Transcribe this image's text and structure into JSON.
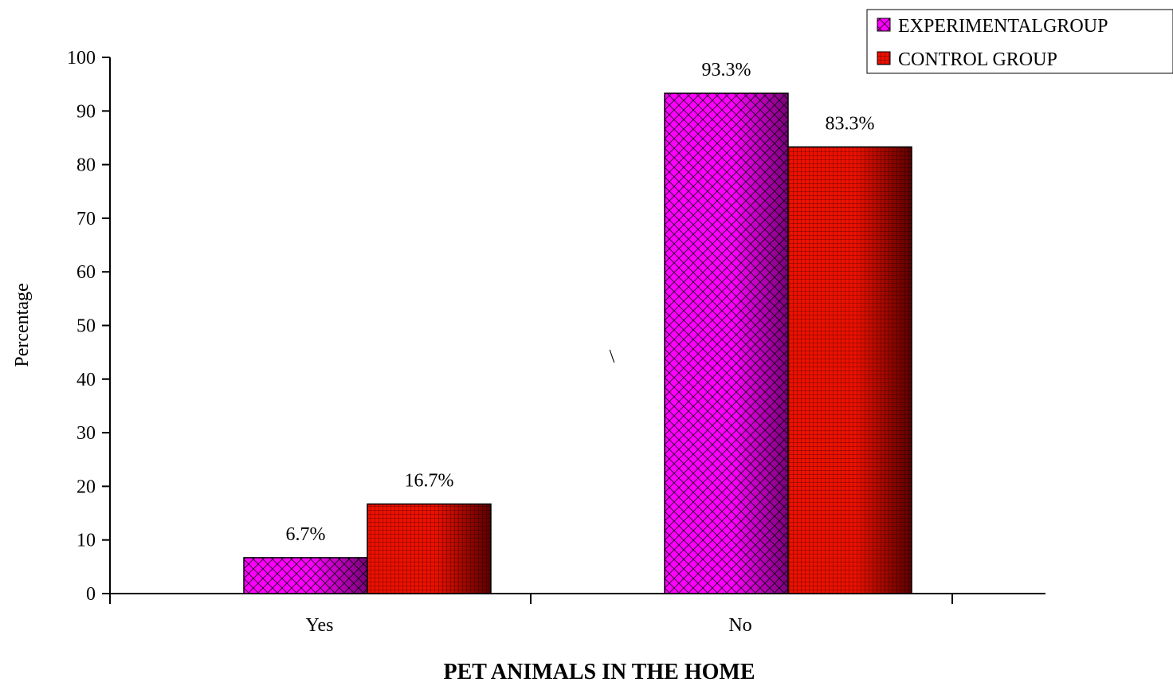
{
  "chart_data": {
    "type": "bar",
    "categories": [
      "Yes",
      "No"
    ],
    "series": [
      {
        "name": "EXPERIMENTALGROUP",
        "values": [
          6.7,
          93.3
        ],
        "labels": [
          "6.7%",
          "93.3%"
        ],
        "color": "#ff00ff",
        "shade": "#7a007a"
      },
      {
        "name": "CONTROL GROUP",
        "values": [
          16.7,
          83.3
        ],
        "labels": [
          "16.7%",
          "83.3%"
        ],
        "color": "#ee1100",
        "shade": "#5a0000"
      }
    ],
    "title": "",
    "xlabel": "PET ANIMALS IN THE HOME",
    "ylabel": "Percentage",
    "ylim": [
      0,
      100
    ],
    "yticks": [
      "0",
      "10",
      "20",
      "30",
      "40",
      "50",
      "60",
      "70",
      "80",
      "90",
      "100"
    ],
    "grid": false,
    "legend_position": "top-right",
    "annotation": "\\"
  }
}
